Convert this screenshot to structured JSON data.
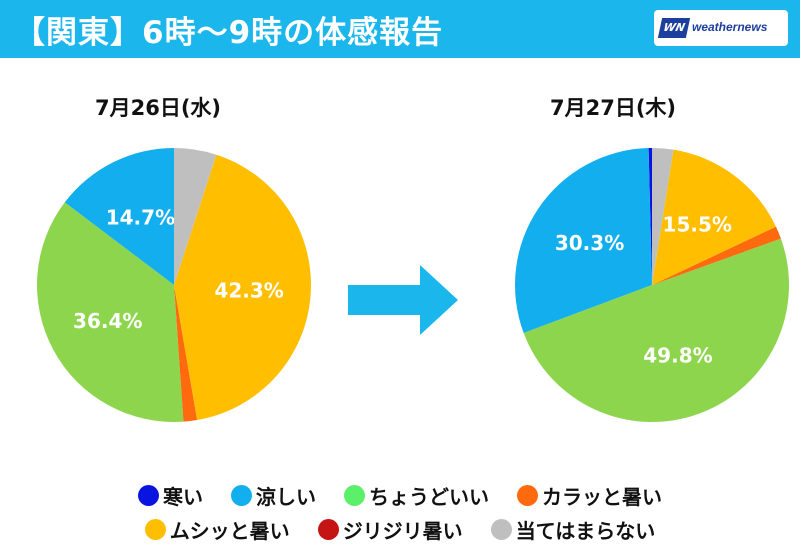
{
  "header": {
    "title": "【関東】6時〜9時の体感報告",
    "logo_text": "weathernews",
    "logo_mark": "WN",
    "bg_color": "#1ab6ec"
  },
  "arrow_color": "#1ab6ec",
  "legend": [
    {
      "label": "寒い",
      "color": "#0a14e0"
    },
    {
      "label": "涼しい",
      "color": "#12aeee"
    },
    {
      "label": "ちょうどいい",
      "color": "#5cf06a"
    },
    {
      "label": "カラッと暑い",
      "color": "#ff6a0f"
    },
    {
      "label": "ムシッと暑い",
      "color": "#ffbf00"
    },
    {
      "label": "ジリジリ暑い",
      "color": "#c41414"
    },
    {
      "label": "当てはまらない",
      "color": "#bfbfbf"
    }
  ],
  "chart_data": [
    {
      "type": "pie",
      "title": "7月26日(水)",
      "slices": [
        {
          "label": "寒い",
          "value": 0.0,
          "color": "#0a14e0",
          "show_label": false
        },
        {
          "label": "涼しい",
          "value": 14.7,
          "color": "#12aeee",
          "show_label": true,
          "text": "14.7%"
        },
        {
          "label": "ちょうどいい",
          "value": 36.4,
          "color": "#8ed54e",
          "show_label": true,
          "text": "36.4%"
        },
        {
          "label": "カラッと暑い",
          "value": 1.6,
          "color": "#ff6a0f",
          "show_label": false
        },
        {
          "label": "ムシッと暑い",
          "value": 42.3,
          "color": "#ffbf00",
          "show_label": true,
          "text": "42.3%"
        },
        {
          "label": "ジリジリ暑い",
          "value": 0.0,
          "color": "#c41414",
          "show_label": false
        },
        {
          "label": "当てはまらない",
          "value": 5.0,
          "color": "#bfbfbf",
          "show_label": false
        }
      ]
    },
    {
      "type": "pie",
      "title": "7月27日(木)",
      "slices": [
        {
          "label": "寒い",
          "value": 0.4,
          "color": "#0a14e0",
          "show_label": false
        },
        {
          "label": "涼しい",
          "value": 30.3,
          "color": "#12aeee",
          "show_label": true,
          "text": "30.3%"
        },
        {
          "label": "ちょうどいい",
          "value": 49.8,
          "color": "#8ed54e",
          "show_label": true,
          "text": "49.8%"
        },
        {
          "label": "カラッと暑い",
          "value": 1.5,
          "color": "#ff6a0f",
          "show_label": false
        },
        {
          "label": "ムシッと暑い",
          "value": 15.5,
          "color": "#ffbf00",
          "show_label": true,
          "text": "15.5%"
        },
        {
          "label": "ジリジリ暑い",
          "value": 0.0,
          "color": "#c41414",
          "show_label": false
        },
        {
          "label": "当てはまらない",
          "value": 2.5,
          "color": "#bfbfbf",
          "show_label": false
        }
      ]
    }
  ]
}
